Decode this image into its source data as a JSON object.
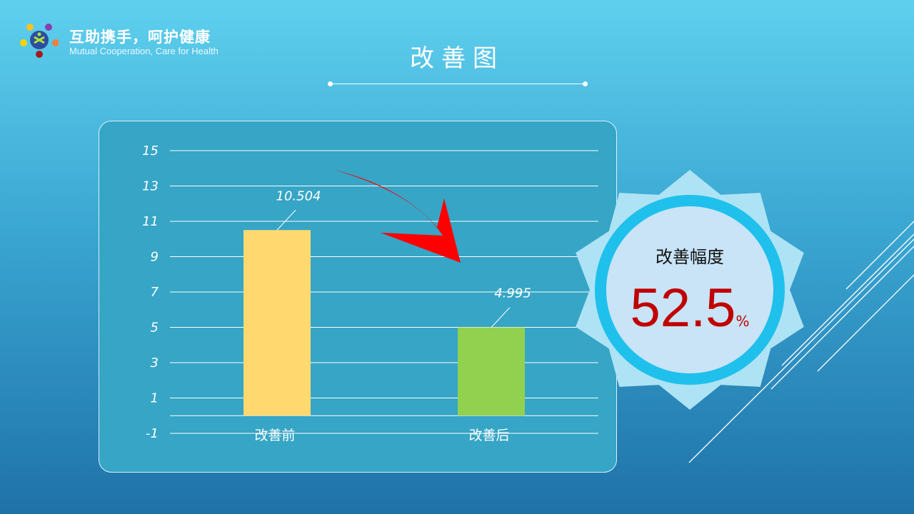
{
  "header": {
    "brand_cn": "互助携手，呵护健康",
    "brand_en": "Mutual Cooperation,  Care for Health",
    "title": "改善图"
  },
  "badge": {
    "label": "改善幅度",
    "value": "52.5",
    "unit": "%",
    "value_color": "#c00000"
  },
  "chart_data": {
    "type": "bar",
    "categories": [
      "改善前",
      "改善后"
    ],
    "values": [
      10.504,
      4.995
    ],
    "data_labels": [
      "10.504",
      "4.995"
    ],
    "colors": [
      "#ffd96f",
      "#92d050"
    ],
    "ylim": [
      -1,
      15
    ],
    "yticks": [
      "15",
      "13",
      "11",
      "9",
      "7",
      "5",
      "3",
      "1",
      "-1"
    ],
    "grid": true,
    "annotation": "red curved arrow pointing down from 改善前 to 改善后"
  }
}
